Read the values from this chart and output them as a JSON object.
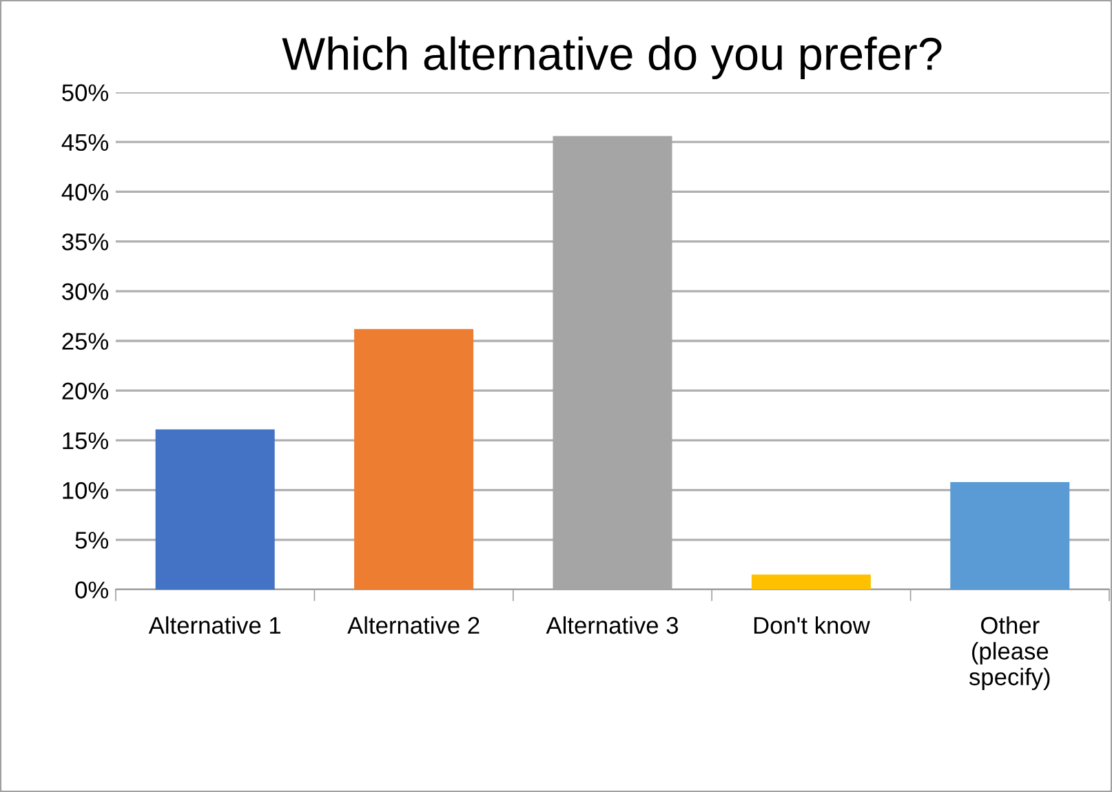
{
  "chart_data": {
    "type": "bar",
    "title": "Which alternative do you prefer?",
    "categories": [
      "Alternative 1",
      "Alternative 2",
      "Alternative 3",
      "Don't know",
      "Other (please specify)"
    ],
    "values": [
      16.1,
      26.2,
      45.6,
      1.5,
      10.8
    ],
    "colors": [
      "#4472c4",
      "#ed7d31",
      "#a5a5a5",
      "#ffc000",
      "#5b9bd5"
    ],
    "ylim": [
      0,
      50
    ],
    "yticks": [
      {
        "value": 0,
        "label": "0%"
      },
      {
        "value": 5,
        "label": "5%"
      },
      {
        "value": 10,
        "label": "10%"
      },
      {
        "value": 15,
        "label": "15%"
      },
      {
        "value": 20,
        "label": "20%"
      },
      {
        "value": 25,
        "label": "25%"
      },
      {
        "value": 30,
        "label": "30%"
      },
      {
        "value": 35,
        "label": "35%"
      },
      {
        "value": 40,
        "label": "40%"
      },
      {
        "value": 45,
        "label": "45%"
      },
      {
        "value": 50,
        "label": "50%"
      }
    ],
    "grid": "y",
    "legend": false
  }
}
